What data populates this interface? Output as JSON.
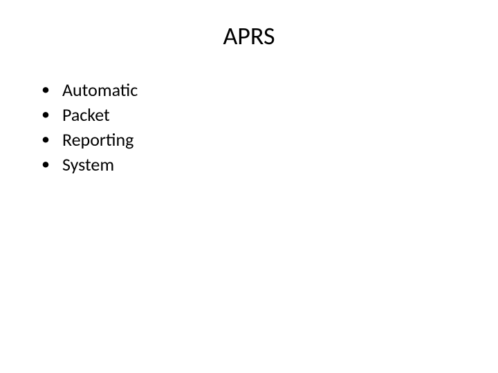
{
  "slide": {
    "title": "APRS",
    "title_fontsize": 36,
    "title_color": "#000000",
    "background_color": "#ffffff",
    "bullets": [
      {
        "text": "Automatic"
      },
      {
        "text": "Packet"
      },
      {
        "text": "Reporting"
      },
      {
        "text": "System"
      }
    ],
    "bullet_fontsize": 26,
    "bullet_color": "#000000",
    "bullet_marker": "•",
    "font_family": "Calibri"
  }
}
